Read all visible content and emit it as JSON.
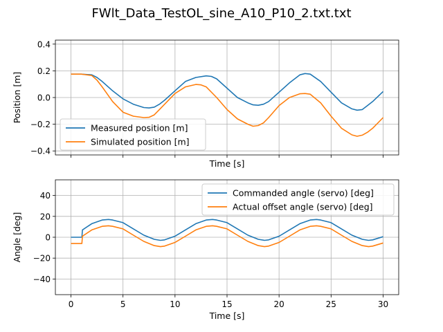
{
  "figure": {
    "title": "FWlt_Data_TestOL_sine_A10_P10_2.txt.txt"
  },
  "colors": {
    "series1": "#1f77b4",
    "series2": "#ff7f0e",
    "grid": "#b0b0b0"
  },
  "chart_data": [
    {
      "type": "line",
      "title": "",
      "xlabel": "Time [s]",
      "ylabel": "Position [m]",
      "xlim": [
        -1.5,
        31.5
      ],
      "ylim": [
        -0.43,
        0.43
      ],
      "xticks": [
        0,
        5,
        10,
        15,
        20,
        25,
        30
      ],
      "xtick_labels_visible": false,
      "yticks": [
        -0.4,
        -0.2,
        0.0,
        0.2,
        0.4
      ],
      "ytick_labels": [
        "−0.4",
        "−0.2",
        "0.0",
        "0.2",
        "0.4"
      ],
      "grid": true,
      "legend_position": "lower-left",
      "series": [
        {
          "name": "Measured position [m]",
          "color": "#1f77b4",
          "x": [
            0,
            1,
            2,
            2.5,
            3,
            4,
            5,
            6,
            7,
            7.5,
            8,
            8.5,
            9,
            10,
            11,
            12,
            13,
            13.5,
            14,
            15,
            16,
            17,
            17.5,
            18,
            18.5,
            19,
            20,
            21,
            22,
            22.5,
            23,
            24,
            25,
            26,
            27,
            27.5,
            28,
            28.5,
            29,
            30
          ],
          "y": [
            0.175,
            0.175,
            0.17,
            0.15,
            0.12,
            0.05,
            -0.01,
            -0.05,
            -0.075,
            -0.078,
            -0.072,
            -0.05,
            -0.02,
            0.05,
            0.12,
            0.15,
            0.162,
            0.158,
            0.14,
            0.07,
            0.0,
            -0.04,
            -0.055,
            -0.058,
            -0.05,
            -0.03,
            0.04,
            0.11,
            0.17,
            0.18,
            0.175,
            0.12,
            0.04,
            -0.04,
            -0.085,
            -0.095,
            -0.09,
            -0.06,
            -0.03,
            0.045
          ]
        },
        {
          "name": "Simulated position [m]",
          "color": "#ff7f0e",
          "x": [
            0,
            1,
            2,
            2.5,
            3,
            4,
            5,
            6,
            7,
            7.5,
            8,
            8.5,
            9,
            10,
            11,
            12,
            12.5,
            13,
            14,
            15,
            16,
            17,
            17.5,
            18,
            18.5,
            19,
            20,
            21,
            22,
            22.5,
            23,
            24,
            25,
            26,
            27,
            27.5,
            28,
            28.5,
            29,
            30
          ],
          "y": [
            0.175,
            0.175,
            0.165,
            0.13,
            0.08,
            -0.03,
            -0.11,
            -0.14,
            -0.15,
            -0.148,
            -0.13,
            -0.09,
            -0.05,
            0.03,
            0.08,
            0.098,
            0.095,
            0.08,
            0.0,
            -0.09,
            -0.16,
            -0.2,
            -0.215,
            -0.21,
            -0.19,
            -0.15,
            -0.06,
            0.0,
            0.028,
            0.03,
            0.025,
            -0.04,
            -0.14,
            -0.23,
            -0.28,
            -0.29,
            -0.282,
            -0.26,
            -0.23,
            -0.15
          ]
        }
      ]
    },
    {
      "type": "line",
      "title": "",
      "xlabel": "Time [s]",
      "ylabel": "Angle [deg]",
      "xlim": [
        -1.5,
        31.5
      ],
      "ylim": [
        -55,
        55
      ],
      "xticks": [
        0,
        5,
        10,
        15,
        20,
        25,
        30
      ],
      "xtick_labels": [
        "0",
        "5",
        "10",
        "15",
        "20",
        "25",
        "30"
      ],
      "yticks": [
        -40,
        -20,
        0,
        20,
        40
      ],
      "ytick_labels": [
        "−40",
        "−20",
        "0",
        "20",
        "40"
      ],
      "grid": true,
      "legend_position": "upper-right",
      "series": [
        {
          "name": "Commanded angle (servo) [deg]",
          "color": "#1f77b4",
          "x": [
            0,
            1.05,
            1.1,
            2,
            3,
            3.6,
            4,
            5,
            6,
            7,
            8,
            8.6,
            9,
            10,
            11,
            12,
            13,
            13.6,
            14,
            15,
            16,
            17,
            18,
            18.6,
            19,
            20,
            21,
            22,
            23,
            23.6,
            24,
            25,
            26,
            27,
            28,
            28.6,
            29,
            30
          ],
          "y": [
            0,
            0,
            7,
            13,
            16.5,
            17,
            16.5,
            14,
            8,
            2,
            -2,
            -3,
            -2.5,
            1,
            7,
            13,
            16.5,
            17,
            16.5,
            14,
            8,
            2,
            -2,
            -3,
            -2.5,
            1,
            7,
            13,
            16.5,
            17,
            16.5,
            14,
            8,
            2,
            -2,
            -3,
            -2.5,
            0.5
          ]
        },
        {
          "name": "Actual offset angle (servo) [deg]",
          "color": "#ff7f0e",
          "x": [
            0,
            1.05,
            1.1,
            2,
            3,
            3.6,
            4,
            5,
            6,
            7,
            8,
            8.6,
            9,
            10,
            11,
            12,
            13,
            13.6,
            14,
            15,
            16,
            17,
            18,
            18.6,
            19,
            20,
            21,
            22,
            23,
            23.6,
            24,
            25,
            26,
            27,
            28,
            28.6,
            29,
            30
          ],
          "y": [
            -6,
            -6,
            1,
            7,
            10.5,
            11,
            10.5,
            8,
            2,
            -4,
            -8,
            -9,
            -8.5,
            -5,
            1,
            7,
            10.5,
            11,
            10.5,
            8,
            2,
            -4,
            -8,
            -9,
            -8.5,
            -5,
            1,
            7,
            10.5,
            11,
            10.5,
            8,
            2,
            -4,
            -8,
            -9,
            -8.5,
            -5.5
          ]
        }
      ]
    }
  ]
}
